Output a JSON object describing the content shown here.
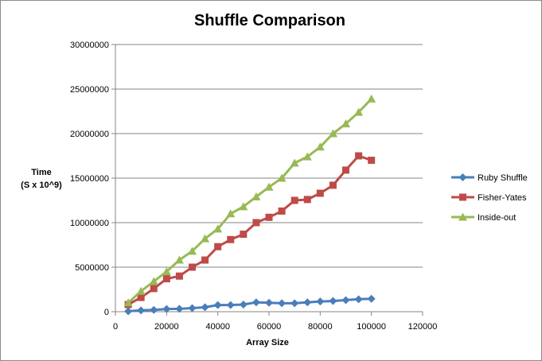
{
  "chart_data": {
    "type": "line",
    "title": "Shuffle Comparison",
    "xlabel": "Array Size",
    "ylabel_lines": [
      "Time",
      "(S x 10^9)"
    ],
    "xlim": [
      0,
      120000
    ],
    "ylim": [
      0,
      30000000
    ],
    "x_ticks": [
      0,
      20000,
      40000,
      60000,
      80000,
      100000,
      120000
    ],
    "y_ticks": [
      0,
      5000000,
      10000000,
      15000000,
      20000000,
      25000000,
      30000000
    ],
    "grid": "horizontal major",
    "legend_position": "right",
    "x": [
      5000,
      10000,
      15000,
      20000,
      25000,
      30000,
      35000,
      40000,
      45000,
      50000,
      55000,
      60000,
      65000,
      70000,
      75000,
      80000,
      85000,
      90000,
      95000,
      100000
    ],
    "series": [
      {
        "name": "Ruby Shuffle",
        "color": "#4a7ebb",
        "marker": "diamond",
        "values": [
          50000,
          150000,
          200000,
          300000,
          320000,
          400000,
          500000,
          750000,
          750000,
          800000,
          1050000,
          1000000,
          950000,
          950000,
          1050000,
          1150000,
          1200000,
          1300000,
          1400000,
          1450000
        ]
      },
      {
        "name": "Fisher-Yates",
        "color": "#be4b48",
        "marker": "square",
        "values": [
          800000,
          1600000,
          2600000,
          3700000,
          4000000,
          5000000,
          5800000,
          7300000,
          8100000,
          8700000,
          10000000,
          10600000,
          11300000,
          12500000,
          12600000,
          13300000,
          14200000,
          15900000,
          17500000,
          17000000
        ]
      },
      {
        "name": "Inside-out",
        "color": "#98b954",
        "marker": "triangle",
        "values": [
          1000000,
          2300000,
          3400000,
          4500000,
          5800000,
          6800000,
          8200000,
          9300000,
          11000000,
          11800000,
          12900000,
          14000000,
          15000000,
          16700000,
          17400000,
          18500000,
          20000000,
          21100000,
          22400000,
          23900000
        ]
      }
    ]
  }
}
